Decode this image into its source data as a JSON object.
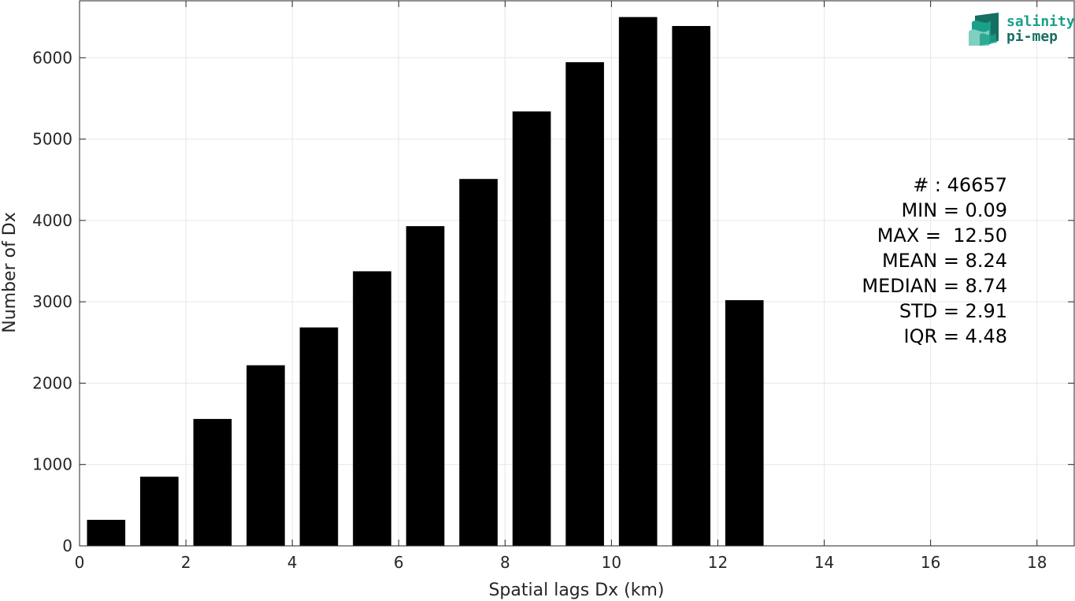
{
  "chart_data": {
    "type": "bar",
    "x": [
      0.5,
      1.5,
      2.5,
      3.5,
      4.5,
      5.5,
      6.5,
      7.5,
      8.5,
      9.5,
      10.5,
      11.5,
      12.5
    ],
    "values": [
      320,
      850,
      1560,
      2220,
      2685,
      3375,
      3930,
      4510,
      5340,
      5945,
      6500,
      6390,
      3020
    ],
    "bar_width": 0.72,
    "xlabel": "Spatial lags Dx (km)",
    "ylabel": "Number of Dx",
    "xlim": [
      0,
      18.7
    ],
    "ylim": [
      0,
      6700
    ],
    "xticks": [
      0,
      2,
      4,
      6,
      8,
      10,
      12,
      14,
      16,
      18
    ],
    "yticks": [
      0,
      1000,
      2000,
      3000,
      4000,
      5000,
      6000
    ],
    "grid": true,
    "bar_color": "#000000",
    "annotations": [
      "# : 46657",
      "MIN = 0.09",
      "MAX =  12.50",
      "MEAN = 8.24",
      "MEDIAN = 8.74",
      "STD = 2.91",
      "IQR = 4.48"
    ]
  },
  "logo": {
    "line1": "salinity",
    "line2": "pi-mep",
    "colors": {
      "teal": "#1aa08a",
      "dark": "#176e62",
      "light": "#7fd0bf"
    }
  }
}
